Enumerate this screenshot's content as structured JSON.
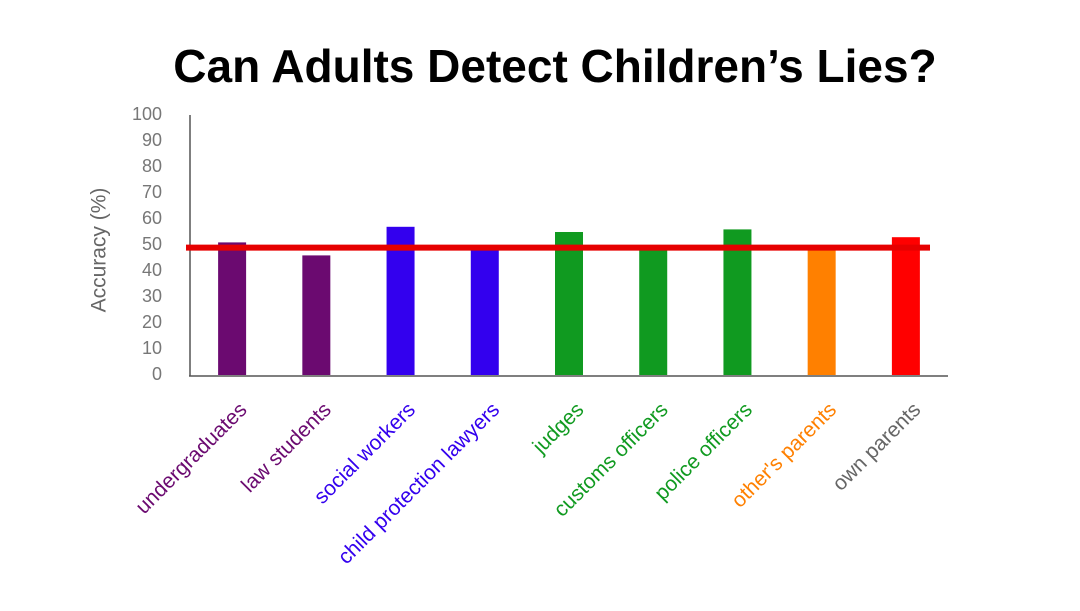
{
  "chart_data": {
    "type": "bar",
    "title": "Can Adults Detect Children’s Lies?",
    "y_label": "Accuracy (%)",
    "categories": [
      "undergraduates",
      "law students",
      "social workers",
      "child protection lawyers",
      "judges",
      "customs officers",
      "police officers",
      "other's parents",
      "own parents"
    ],
    "values": [
      51,
      46,
      57,
      48,
      55,
      48,
      56,
      48,
      53
    ],
    "colors": [
      "#6b0a70",
      "#6b0a70",
      "#3300ee",
      "#3300ee",
      "#109a20",
      "#109a20",
      "#109a20",
      "#ff8000",
      "#ff0000"
    ],
    "label_colors": [
      "#6b0a70",
      "#6b0a70",
      "#3300ee",
      "#3300ee",
      "#109a20",
      "#109a20",
      "#109a20",
      "#ff8000",
      "#666666"
    ],
    "reference_line": 49,
    "reference_color": "#e60000",
    "ylim": [
      0,
      100
    ],
    "yticks": [
      0,
      10,
      20,
      30,
      40,
      50,
      60,
      70,
      80,
      90,
      100
    ],
    "grid": false
  }
}
